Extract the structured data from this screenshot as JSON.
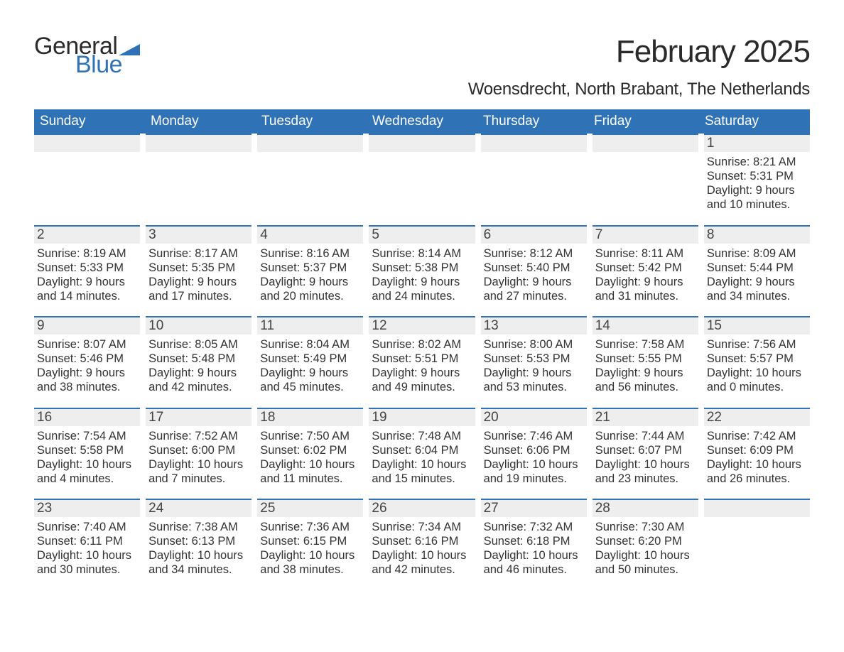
{
  "logo": {
    "word1": "General",
    "word2": "Blue",
    "tri_color": "#2f73b6"
  },
  "title": "February 2025",
  "subtitle": "Woensdrecht, North Brabant, The Netherlands",
  "colors": {
    "header_bg": "#2f73b6",
    "header_text": "#ffffff",
    "daynum_bg": "#eeeeee",
    "rule": "#2f73b6",
    "page_bg": "#ffffff",
    "text": "#333333"
  },
  "days_of_week": [
    "Sunday",
    "Monday",
    "Tuesday",
    "Wednesday",
    "Thursday",
    "Friday",
    "Saturday"
  ],
  "weeks": [
    [
      {
        "day": null
      },
      {
        "day": null
      },
      {
        "day": null
      },
      {
        "day": null
      },
      {
        "day": null
      },
      {
        "day": null
      },
      {
        "day": 1,
        "sunrise": "8:21 AM",
        "sunset": "5:31 PM",
        "daylight": "9 hours and 10 minutes."
      }
    ],
    [
      {
        "day": 2,
        "sunrise": "8:19 AM",
        "sunset": "5:33 PM",
        "daylight": "9 hours and 14 minutes."
      },
      {
        "day": 3,
        "sunrise": "8:17 AM",
        "sunset": "5:35 PM",
        "daylight": "9 hours and 17 minutes."
      },
      {
        "day": 4,
        "sunrise": "8:16 AM",
        "sunset": "5:37 PM",
        "daylight": "9 hours and 20 minutes."
      },
      {
        "day": 5,
        "sunrise": "8:14 AM",
        "sunset": "5:38 PM",
        "daylight": "9 hours and 24 minutes."
      },
      {
        "day": 6,
        "sunrise": "8:12 AM",
        "sunset": "5:40 PM",
        "daylight": "9 hours and 27 minutes."
      },
      {
        "day": 7,
        "sunrise": "8:11 AM",
        "sunset": "5:42 PM",
        "daylight": "9 hours and 31 minutes."
      },
      {
        "day": 8,
        "sunrise": "8:09 AM",
        "sunset": "5:44 PM",
        "daylight": "9 hours and 34 minutes."
      }
    ],
    [
      {
        "day": 9,
        "sunrise": "8:07 AM",
        "sunset": "5:46 PM",
        "daylight": "9 hours and 38 minutes."
      },
      {
        "day": 10,
        "sunrise": "8:05 AM",
        "sunset": "5:48 PM",
        "daylight": "9 hours and 42 minutes."
      },
      {
        "day": 11,
        "sunrise": "8:04 AM",
        "sunset": "5:49 PM",
        "daylight": "9 hours and 45 minutes."
      },
      {
        "day": 12,
        "sunrise": "8:02 AM",
        "sunset": "5:51 PM",
        "daylight": "9 hours and 49 minutes."
      },
      {
        "day": 13,
        "sunrise": "8:00 AM",
        "sunset": "5:53 PM",
        "daylight": "9 hours and 53 minutes."
      },
      {
        "day": 14,
        "sunrise": "7:58 AM",
        "sunset": "5:55 PM",
        "daylight": "9 hours and 56 minutes."
      },
      {
        "day": 15,
        "sunrise": "7:56 AM",
        "sunset": "5:57 PM",
        "daylight": "10 hours and 0 minutes."
      }
    ],
    [
      {
        "day": 16,
        "sunrise": "7:54 AM",
        "sunset": "5:58 PM",
        "daylight": "10 hours and 4 minutes."
      },
      {
        "day": 17,
        "sunrise": "7:52 AM",
        "sunset": "6:00 PM",
        "daylight": "10 hours and 7 minutes."
      },
      {
        "day": 18,
        "sunrise": "7:50 AM",
        "sunset": "6:02 PM",
        "daylight": "10 hours and 11 minutes."
      },
      {
        "day": 19,
        "sunrise": "7:48 AM",
        "sunset": "6:04 PM",
        "daylight": "10 hours and 15 minutes."
      },
      {
        "day": 20,
        "sunrise": "7:46 AM",
        "sunset": "6:06 PM",
        "daylight": "10 hours and 19 minutes."
      },
      {
        "day": 21,
        "sunrise": "7:44 AM",
        "sunset": "6:07 PM",
        "daylight": "10 hours and 23 minutes."
      },
      {
        "day": 22,
        "sunrise": "7:42 AM",
        "sunset": "6:09 PM",
        "daylight": "10 hours and 26 minutes."
      }
    ],
    [
      {
        "day": 23,
        "sunrise": "7:40 AM",
        "sunset": "6:11 PM",
        "daylight": "10 hours and 30 minutes."
      },
      {
        "day": 24,
        "sunrise": "7:38 AM",
        "sunset": "6:13 PM",
        "daylight": "10 hours and 34 minutes."
      },
      {
        "day": 25,
        "sunrise": "7:36 AM",
        "sunset": "6:15 PM",
        "daylight": "10 hours and 38 minutes."
      },
      {
        "day": 26,
        "sunrise": "7:34 AM",
        "sunset": "6:16 PM",
        "daylight": "10 hours and 42 minutes."
      },
      {
        "day": 27,
        "sunrise": "7:32 AM",
        "sunset": "6:18 PM",
        "daylight": "10 hours and 46 minutes."
      },
      {
        "day": 28,
        "sunrise": "7:30 AM",
        "sunset": "6:20 PM",
        "daylight": "10 hours and 50 minutes."
      },
      {
        "day": null
      }
    ]
  ],
  "labels": {
    "sunrise": "Sunrise: ",
    "sunset": "Sunset: ",
    "daylight": "Daylight: "
  }
}
